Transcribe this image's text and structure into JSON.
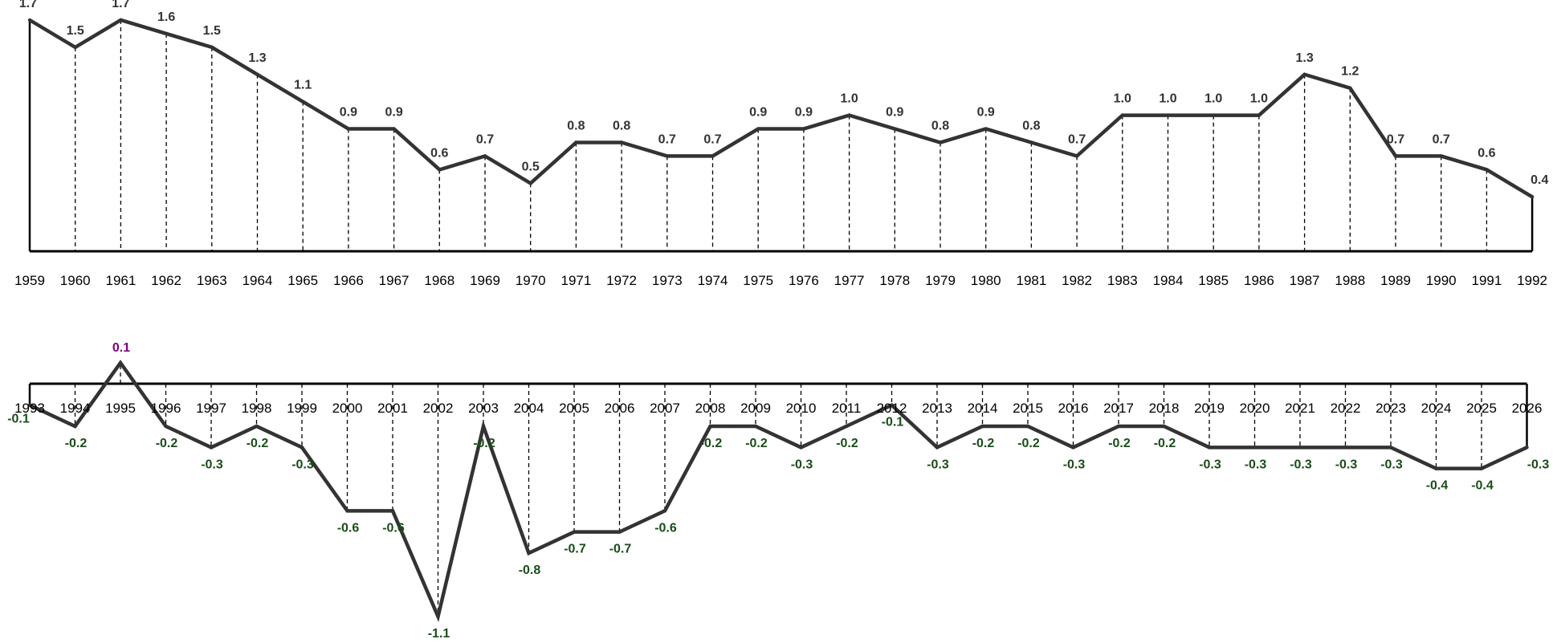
{
  "chart_data": [
    {
      "type": "line",
      "x": [
        "1959",
        "1960",
        "1961",
        "1962",
        "1963",
        "1964",
        "1965",
        "1966",
        "1967",
        "1968",
        "1969",
        "1970",
        "1971",
        "1972",
        "1973",
        "1974",
        "1975",
        "1976",
        "1977",
        "1978",
        "1979",
        "1980",
        "1981",
        "1982",
        "1983",
        "1984",
        "1985",
        "1986",
        "1987",
        "1988",
        "1989",
        "1990",
        "1991",
        "1992"
      ],
      "labels": [
        "1.7",
        "1.5",
        "1.7",
        "1.6",
        "1.5",
        "1.3",
        "1.1",
        "0.9",
        "0.9",
        "0.6",
        "0.7",
        "0.5",
        "0.8",
        "0.8",
        "0.7",
        "0.7",
        "0.9",
        "0.9",
        "1.0",
        "0.9",
        "0.8",
        "0.9",
        "0.8",
        "0.7",
        "1.0",
        "1.0",
        "1.0",
        "1.0",
        "1.3",
        "1.2",
        "0.7",
        "0.7",
        "0.6",
        "0.4"
      ],
      "values": [
        1.7,
        1.5,
        1.7,
        1.6,
        1.5,
        1.3,
        1.1,
        0.9,
        0.9,
        0.6,
        0.7,
        0.5,
        0.8,
        0.8,
        0.7,
        0.7,
        0.9,
        0.9,
        1.0,
        0.9,
        0.8,
        0.9,
        0.8,
        0.7,
        1.0,
        1.0,
        1.0,
        1.0,
        1.3,
        1.2,
        0.7,
        0.7,
        0.6,
        0.4
      ],
      "ylim": [
        0,
        1.7
      ],
      "line_color": "#333333",
      "label_color": "#333333",
      "grid": false,
      "drop_lines": true
    },
    {
      "type": "line",
      "x": [
        "1993",
        "1994",
        "1995",
        "1996",
        "1997",
        "1998",
        "1999",
        "2000",
        "2001",
        "2002",
        "2003",
        "2004",
        "2005",
        "2006",
        "2007",
        "2008",
        "2009",
        "2010",
        "2011",
        "2012",
        "2013",
        "2014",
        "2015",
        "2016",
        "2017",
        "2018",
        "2019",
        "2020",
        "2021",
        "2022",
        "2023",
        "2024",
        "2025",
        "2026"
      ],
      "labels": [
        "-0.1",
        "-0.2",
        "0.1",
        "-0.2",
        "-0.3",
        "-0.2",
        "-0.3",
        "-0.6",
        "-0.6",
        "-1.1",
        "-0.2",
        "-0.8",
        "-0.7",
        "-0.7",
        "-0.6",
        "-0.2",
        "-0.2",
        "-0.3",
        "-0.2",
        "-0.1",
        "-0.3",
        "-0.2",
        "-0.2",
        "-0.3",
        "-0.2",
        "-0.2",
        "-0.3",
        "-0.3",
        "-0.3",
        "-0.3",
        "-0.3",
        "-0.4",
        "-0.4",
        "-0.3"
      ],
      "values": [
        -0.1,
        -0.2,
        0.1,
        -0.2,
        -0.3,
        -0.2,
        -0.3,
        -0.6,
        -0.6,
        -1.1,
        -0.2,
        -0.8,
        -0.7,
        -0.7,
        -0.6,
        -0.2,
        -0.2,
        -0.3,
        -0.2,
        -0.1,
        -0.3,
        -0.2,
        -0.2,
        -0.3,
        -0.2,
        -0.2,
        -0.3,
        -0.3,
        -0.3,
        -0.3,
        -0.3,
        -0.4,
        -0.4,
        -0.3
      ],
      "ylim": [
        -1.1,
        0.1
      ],
      "line_color": "#333333",
      "positive_label_color": "#800080",
      "negative_label_color": "#1a4d1a",
      "grid": false,
      "drop_lines": true
    }
  ]
}
